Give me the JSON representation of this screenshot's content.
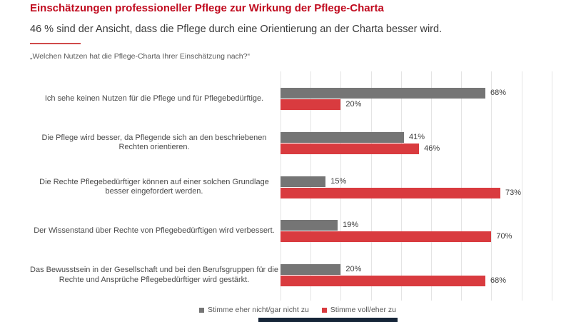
{
  "header": {
    "title": "Einschätzungen professioneller Pflege zur Wirkung der Pflege-Charta",
    "subtitle": "46 % sind der Ansicht, dass die Pflege durch eine Orientierung an der Charta besser wird.",
    "question": "„Welchen Nutzen hat die Pflege-Charta Ihrer Einschätzung nach?“"
  },
  "chart_data": {
    "type": "bar",
    "orientation": "horizontal",
    "categories": [
      "Ich sehe keinen Nutzen für die Pflege und für Pflegebedürftige.",
      "Die Pflege wird besser, da Pflegende sich an den beschriebenen Rechten orientieren.",
      "Die Rechte Pflegebedürftiger können auf einer solchen Grundlage besser eingefordert werden.",
      "Der Wissenstand über Rechte von Pflegebedürftigen wird verbessert.",
      "Das Bewusstsein in der Gesellschaft und bei den Berufsgruppen für die Rechte und Ansprüche Pflegebedürftiger wird gestärkt."
    ],
    "series": [
      {
        "name": "Stimme eher nicht/gar nicht zu",
        "color": "#757575",
        "values": [
          68,
          41,
          15,
          19,
          20
        ]
      },
      {
        "name": "Stimme voll/eher zu",
        "color": "#d93b3f",
        "values": [
          20,
          46,
          73,
          70,
          68
        ]
      }
    ],
    "value_suffix": "%",
    "xlim": [
      0,
      100
    ],
    "gridline_interval_percent": 10,
    "grid": true,
    "legend_position": "bottom"
  },
  "colors": {
    "title": "#c00a1e",
    "accent_rule": "#d04a4a",
    "bar_gray": "#757575",
    "bar_red": "#d93b3f",
    "gridline": "#e4e4e4",
    "value_text": "#3d3d3d",
    "footer_bar": "#152538"
  }
}
